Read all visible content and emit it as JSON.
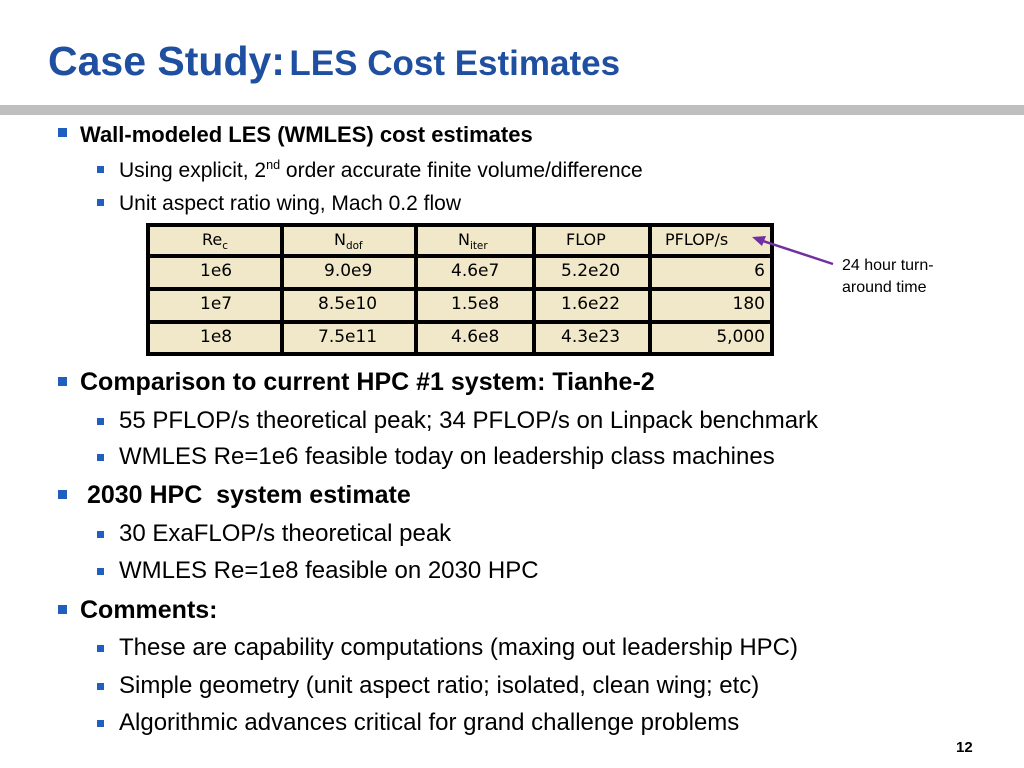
{
  "title": {
    "main": "Case Study:",
    "sub": "LES Cost Estimates"
  },
  "bullets": [
    {
      "text": "Wall-modeled LES (WMLES) cost estimates",
      "sub": [
        {
          "pre": "Using explicit, 2",
          "sup": "nd",
          "post": " order accurate finite volume/difference"
        },
        {
          "text": "Unit aspect ratio wing, Mach 0.2 flow"
        }
      ]
    },
    {
      "text": "Comparison to current HPC #1 system: Tianhe-2",
      "sub": [
        {
          "text": "55 PFLOP/s theoretical peak; 34 PFLOP/s on Linpack benchmark"
        },
        {
          "text": "WMLES Re=1e6 feasible today on leadership class machines"
        }
      ]
    },
    {
      "text": " 2030 HPC  system estimate",
      "sub": [
        {
          "text": "30 ExaFLOP/s theoretical peak"
        },
        {
          "text": "WMLES Re=1e8 feasible on 2030 HPC"
        }
      ]
    },
    {
      "text": "Comments:",
      "sub": [
        {
          "text": "These are capability computations (maxing out leadership HPC)"
        },
        {
          "text": "Simple geometry (unit aspect ratio; isolated, clean wing; etc)"
        },
        {
          "text": "Algorithmic advances critical for grand challenge problems"
        }
      ]
    }
  ],
  "table": {
    "headers": [
      {
        "base": "Re",
        "sub": "c"
      },
      {
        "base": "N",
        "sub": "dof"
      },
      {
        "base": "N",
        "sub": "iter"
      },
      {
        "base": "FLOP",
        "sub": ""
      },
      {
        "base": "PFLOP/s",
        "sub": ""
      }
    ],
    "rows": [
      [
        "1e6",
        "9.0e9",
        "4.6e7",
        "5.2e20",
        "6"
      ],
      [
        "1e7",
        "8.5e10",
        "1.5e8",
        "1.6e22",
        "180"
      ],
      [
        "1e8",
        "7.5e11",
        "4.6e8",
        "4.3e23",
        "5,000"
      ]
    ]
  },
  "annotation": {
    "line1": "24 hour turn-",
    "line2": "around time"
  },
  "page_number": "12",
  "colors": {
    "title": "#1f4fa0",
    "bullet": "#1f5fbf",
    "arrow": "#7030a0",
    "table_fill": "#f0e8c8"
  }
}
